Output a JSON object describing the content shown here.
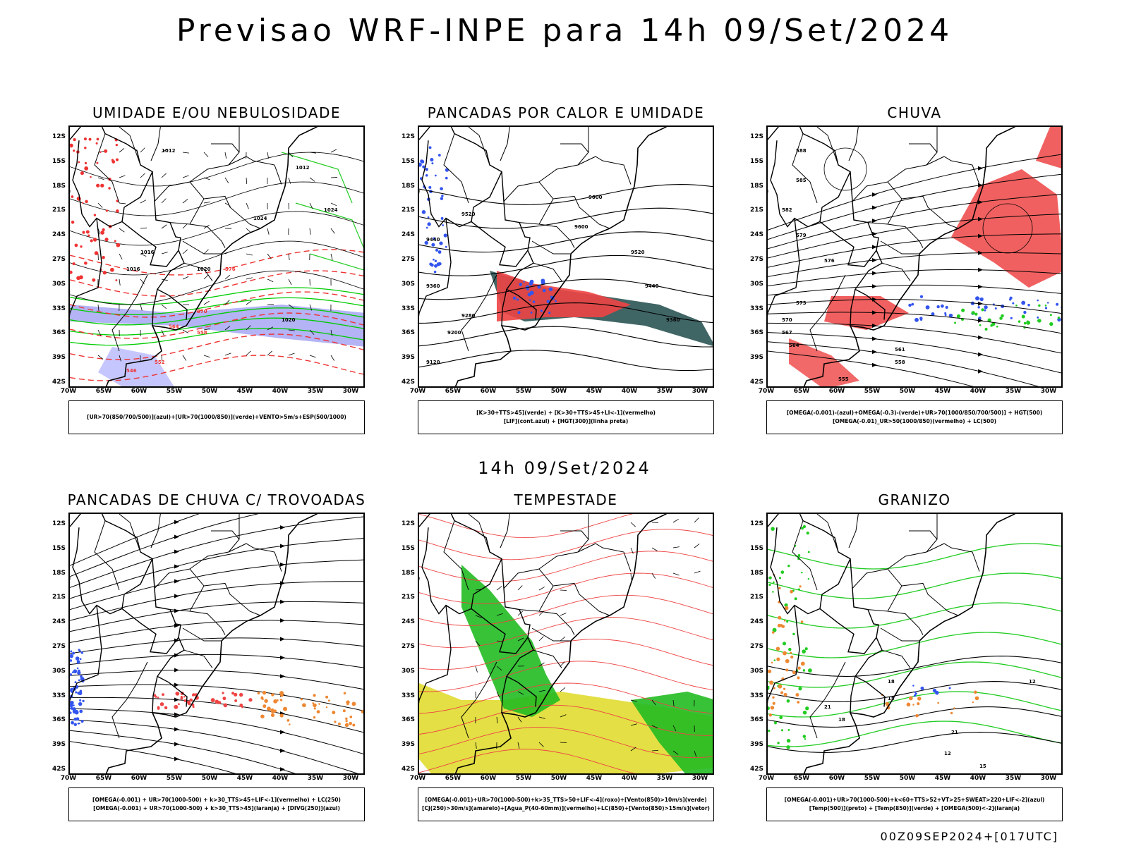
{
  "title": "Previsao WRF-INPE  para 14h 09/Set/2024",
  "mid_title": "14h 09/Set/2024",
  "footer": "00Z09SEP2024+[017UTC]",
  "lat_labels": [
    "12S",
    "15S",
    "18S",
    "21S",
    "24S",
    "27S",
    "30S",
    "33S",
    "36S",
    "39S",
    "42S"
  ],
  "lon_labels": [
    "70W",
    "65W",
    "60W",
    "55W",
    "50W",
    "45W",
    "40W",
    "35W",
    "30W"
  ],
  "panels": [
    {
      "title": "UMIDADE E/OU NEBULOSIDADE",
      "legend": [
        "[UR>70(850/700/500)](azul)+[UR>70(1000/850)](verde)+VENTO>5m/s+ESP(500/1000)"
      ],
      "contour_labels": [
        "1012",
        "1016",
        "1020",
        "1024",
        "1012",
        "1016",
        "1020",
        "1024",
        "576",
        "570",
        "564",
        "558",
        "552",
        "546"
      ]
    },
    {
      "title": "PANCADAS POR CALOR E UMIDADE",
      "legend": [
        "[K>30+TTS>45](verde) + [K>30+TTS>45+LI<-1](vermelho)",
        "[LIF](cont.azul) + [HGT(300)](linha preta)"
      ],
      "contour_labels": [
        "9600",
        "9520",
        "9440",
        "9360",
        "9280",
        "9200",
        "9120",
        "9600",
        "9520",
        "9440",
        "9360"
      ]
    },
    {
      "title": "CHUVA",
      "legend": [
        "[OMEGA(-0.001)-(azul)+OMEGA(-0.3)-(verde)+UR>70(1000/850/700/500)] + HGT(500)",
        "[OMEGA(-0.01)_UR>50(1000/850)(vermelho) + LC(500)"
      ],
      "contour_labels": [
        "588",
        "585",
        "582",
        "579",
        "576",
        "573",
        "570",
        "567",
        "564",
        "561",
        "558",
        "555"
      ]
    },
    {
      "title": "PANCADAS DE CHUVA C/ TROVOADAS",
      "legend": [
        "[OMEGA(-0.001) + UR>70(1000-500) + k>30_TTS>45+LIF<-1](vermelho) + LC(250)",
        "[OMEGA(-0.001) + UR>70(1000-500) + k>30_TTS>45](laranja) + [DIVG(250)](azul)"
      ],
      "contour_labels": []
    },
    {
      "title": "TEMPESTADE",
      "legend": [
        "[OMEGA(-0.001)+UR>70(1000-500)+k>35_TTS>50+LIF<-4](roxo)+[Vento(850)>10m/s](verde)",
        "[CJ(250)>30m/s](amarelo)+[Agua_P(40-60mm)](vermelho)+LC(850)+[Vento(850)>15m/s](vetor)"
      ],
      "contour_labels": []
    },
    {
      "title": "GRANIZO",
      "legend": [
        "[OMEGA(-0.001)+UR>70(1000-500)+k<60+TTS>52+VT>25+SWEAT>220+LIF<-2](azul)",
        "[Temp(500)](preto) + [Temp(850)](verde) + [OMEGA(500)<-2](laranja)"
      ],
      "contour_labels": [
        "12",
        "15",
        "18",
        "21",
        "12",
        "15",
        "18",
        "21"
      ]
    }
  ]
}
